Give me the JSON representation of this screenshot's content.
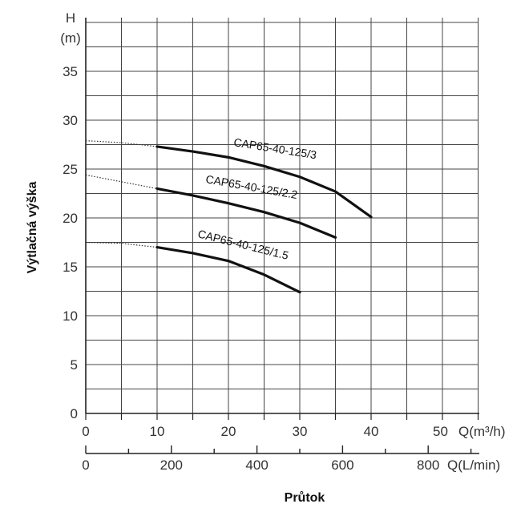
{
  "chart_data": {
    "type": "line",
    "ylabel": "Výtlačná výška",
    "xlabel": "Průtok",
    "y_unit_top": "H",
    "y_unit_bottom": "(m)",
    "x_unit_m3h": "Q(m³/h)",
    "x_unit_lmin": "Q(L/min)",
    "ylim": [
      0,
      40
    ],
    "xlim": [
      0,
      55
    ],
    "y_ticks": [
      "0",
      "5",
      "10",
      "15",
      "20",
      "25",
      "30",
      "35"
    ],
    "x_ticks_m3h": [
      "0",
      "10",
      "20",
      "30",
      "40",
      "50"
    ],
    "x_ticks_lmin": [
      "0",
      "200",
      "400",
      "600",
      "800"
    ],
    "grid": true,
    "series": [
      {
        "name": "CAP65-40-125/3",
        "x": [
          10,
          15,
          20,
          25,
          30,
          35,
          40
        ],
        "y": [
          27.3,
          26.8,
          26.2,
          25.3,
          24.2,
          22.7,
          20.1
        ],
        "extrapolated": {
          "x": [
            0,
            5,
            10
          ],
          "y": [
            27.9,
            27.7,
            27.3
          ]
        }
      },
      {
        "name": "CAP65-40-125/2.2",
        "x": [
          10,
          15,
          20,
          25,
          30,
          35
        ],
        "y": [
          23.0,
          22.3,
          21.5,
          20.6,
          19.5,
          18.0
        ],
        "extrapolated": {
          "x": [
            0,
            5,
            10
          ],
          "y": [
            24.4,
            23.7,
            23.0
          ]
        }
      },
      {
        "name": "CAP65-40-125/1.5",
        "x": [
          10,
          15,
          20,
          25,
          30
        ],
        "y": [
          17.0,
          16.4,
          15.6,
          14.2,
          12.4
        ],
        "extrapolated": {
          "x": [
            0,
            5,
            10
          ],
          "y": [
            17.5,
            17.4,
            17.0
          ]
        }
      }
    ]
  }
}
